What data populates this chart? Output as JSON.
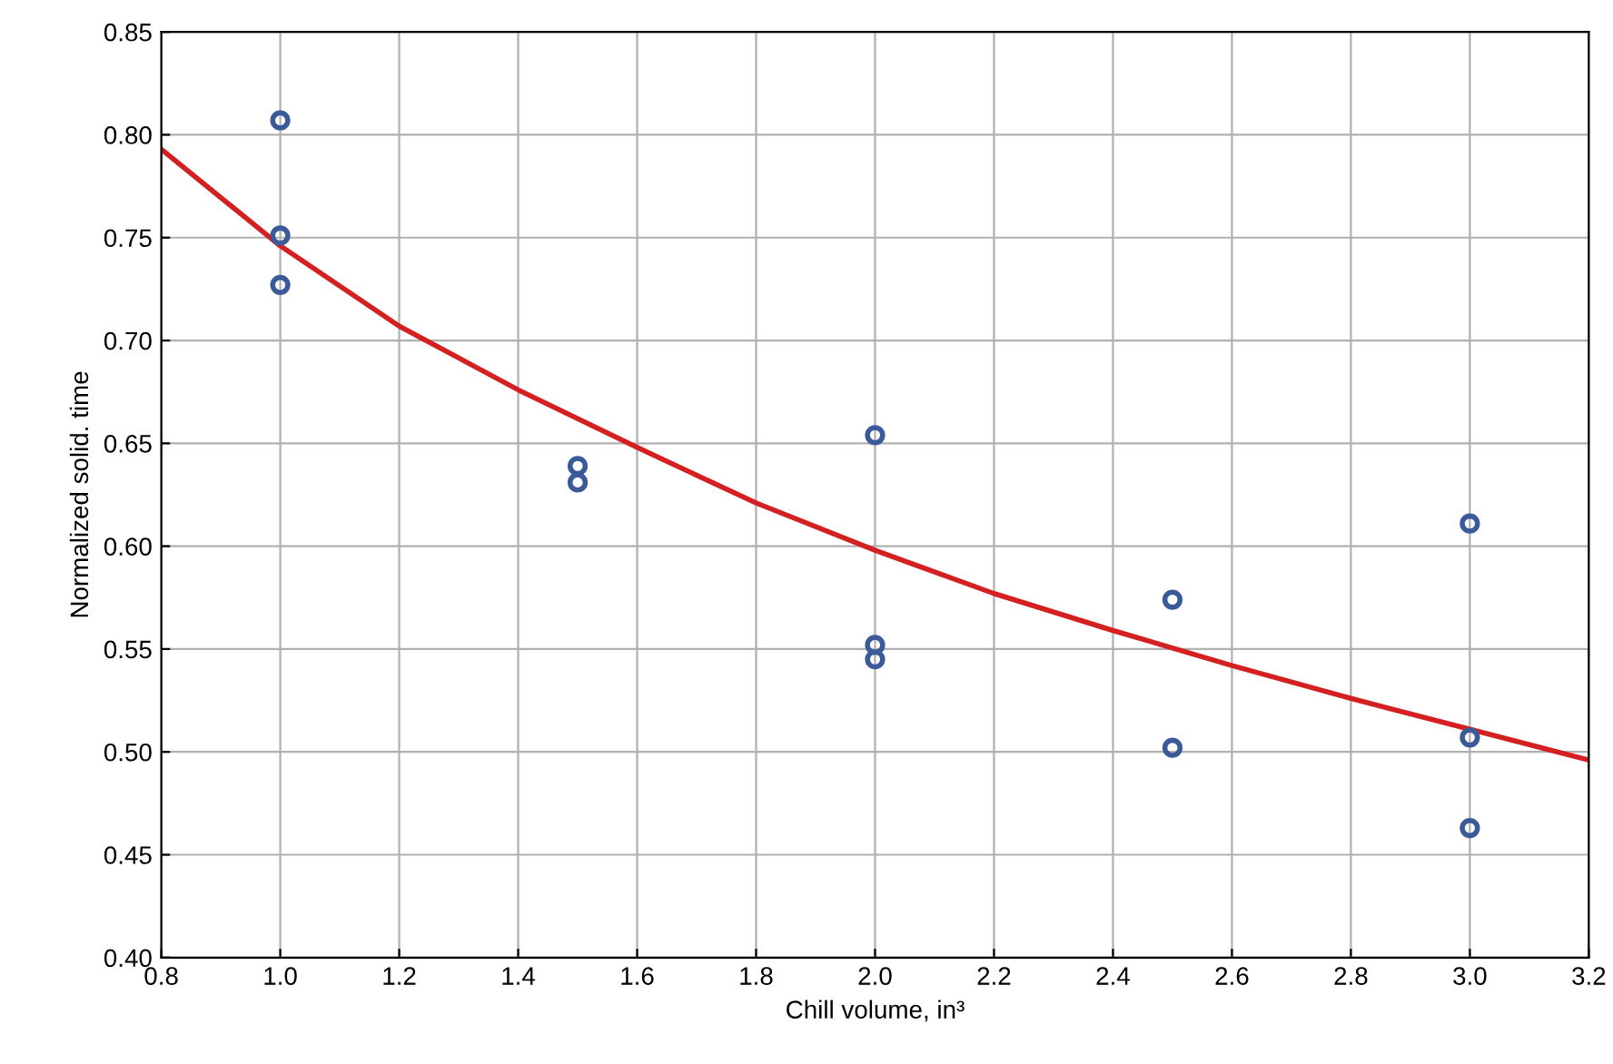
{
  "chart_data": {
    "type": "scatter",
    "xlabel": "Chill volume, in³",
    "ylabel": "Normalized solid. time",
    "xlim": [
      0.8,
      3.2
    ],
    "xticks": [
      {
        "value": 0.8,
        "label": "0.8"
      },
      {
        "value": 1.0,
        "label": "1.0"
      },
      {
        "value": 1.2,
        "label": "1.2"
      },
      {
        "value": 1.4,
        "label": "1.4"
      },
      {
        "value": 1.6,
        "label": "1.6"
      },
      {
        "value": 1.8,
        "label": "1.8"
      },
      {
        "value": 2.0,
        "label": "2.0"
      },
      {
        "value": 2.2,
        "label": "2.2"
      },
      {
        "value": 2.4,
        "label": "2.4"
      },
      {
        "value": 2.6,
        "label": "2.6"
      },
      {
        "value": 2.8,
        "label": "2.8"
      },
      {
        "value": 3.0,
        "label": "3.0"
      },
      {
        "value": 3.2,
        "label": "3.2"
      }
    ],
    "ylim": [
      0.4,
      0.85
    ],
    "yticks": [
      {
        "value": 0.4,
        "label": "0.40"
      },
      {
        "value": 0.45,
        "label": "0.45"
      },
      {
        "value": 0.5,
        "label": "0.50"
      },
      {
        "value": 0.55,
        "label": "0.55"
      },
      {
        "value": 0.6,
        "label": "0.60"
      },
      {
        "value": 0.65,
        "label": "0.65"
      },
      {
        "value": 0.7,
        "label": "0.70"
      },
      {
        "value": 0.75,
        "label": "0.75"
      },
      {
        "value": 0.8,
        "label": "0.80"
      },
      {
        "value": 0.85,
        "label": "0.85"
      }
    ],
    "grid": true,
    "marker": "circle",
    "series": [
      {
        "color": "#3a5a9a",
        "x": [
          1.0,
          1.0,
          1.0,
          1.5,
          1.5,
          2.0,
          2.0,
          2.0,
          2.5,
          2.5,
          3.0,
          3.0,
          3.0
        ],
        "values": [
          0.807,
          0.751,
          0.727,
          0.639,
          0.631,
          0.654,
          0.552,
          0.545,
          0.574,
          0.502,
          0.611,
          0.507,
          0.463
        ]
      },
      {
        "type": "line",
        "color": "#d42020",
        "marker": "none",
        "x": [
          0.8,
          1.0,
          1.2,
          1.4,
          1.6,
          1.8,
          2.0,
          2.2,
          2.4,
          2.6,
          2.8,
          3.0,
          3.2
        ],
        "values": [
          0.793,
          0.746,
          0.707,
          0.676,
          0.648,
          0.621,
          0.598,
          0.577,
          0.559,
          0.542,
          0.526,
          0.511,
          0.496
        ]
      }
    ]
  }
}
